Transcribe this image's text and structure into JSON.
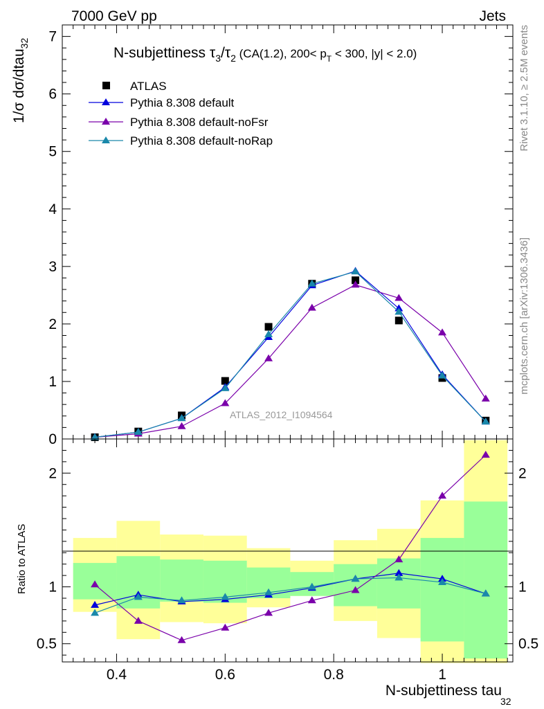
{
  "header": {
    "left": "7000 GeV pp",
    "right": "Jets"
  },
  "side_labels": {
    "rivet": "Rivet 3.1.10, ≥ 2.5M events",
    "mcplots": "mcplots.cern.ch [arXiv:1306.3436]"
  },
  "watermark": "ATLAS_2012_I1094564",
  "chart_data": [
    {
      "type": "scatter",
      "panel": "main",
      "title": {
        "prefix": "N-subjettiness ",
        "tau": "τ",
        "sub3": "3",
        "slash": "/",
        "sub2": "2",
        "cut_a": " (CA(1.2), 200< p",
        "cut_sub": "T",
        "cut_b": " < 300, |y| < 2.0)"
      },
      "ylabel": {
        "main": "1/σ dσ/dtau",
        "sub": "32"
      },
      "xlim": [
        0.3,
        1.13
      ],
      "ylim": [
        0,
        7.2
      ],
      "yticks": [
        0,
        1,
        2,
        3,
        4,
        5,
        6,
        7
      ],
      "legend_position": "top-left",
      "x": [
        0.36,
        0.44,
        0.52,
        0.6,
        0.68,
        0.76,
        0.84,
        0.92,
        1.0,
        1.08
      ],
      "series": [
        {
          "name": "ATLAS",
          "marker": "square",
          "color": "#000000",
          "values": [
            0.03,
            0.13,
            0.41,
            1.01,
            1.95,
            2.7,
            2.76,
            2.06,
            1.06,
            0.32
          ]
        },
        {
          "name": "Pythia 8.308 default",
          "marker": "triangle",
          "color": "#0000dd",
          "values": [
            0.03,
            0.12,
            0.36,
            0.9,
            1.77,
            2.67,
            2.92,
            2.27,
            1.12,
            0.3
          ]
        },
        {
          "name": "Pythia 8.308 default-noFsr",
          "marker": "triangle",
          "color": "#7a00aa",
          "values": [
            0.03,
            0.09,
            0.22,
            0.62,
            1.4,
            2.28,
            2.68,
            2.45,
            1.85,
            0.7
          ]
        },
        {
          "name": "Pythia 8.308 default-noRap",
          "marker": "triangle",
          "color": "#1a88aa",
          "values": [
            0.03,
            0.12,
            0.36,
            0.88,
            1.82,
            2.7,
            2.91,
            2.21,
            1.1,
            0.3
          ]
        }
      ]
    },
    {
      "type": "line",
      "panel": "ratio",
      "ylabel": "Ratio to ATLAS",
      "xlabel": {
        "main": "N-subjettiness tau",
        "sub": "32"
      },
      "xlim": [
        0.3,
        1.13
      ],
      "ylim": [
        0.34,
        2.3
      ],
      "yticks": [
        0.5,
        1,
        2
      ],
      "xticks": [
        0.4,
        0.6,
        0.8,
        1.0
      ],
      "bins": [
        [
          0.32,
          0.4
        ],
        [
          0.4,
          0.48
        ],
        [
          0.48,
          0.56
        ],
        [
          0.56,
          0.64
        ],
        [
          0.64,
          0.72
        ],
        [
          0.72,
          0.8
        ],
        [
          0.8,
          0.88
        ],
        [
          0.88,
          0.96
        ],
        [
          0.96,
          1.04
        ],
        [
          1.04,
          1.12
        ]
      ],
      "band_stat_color": "#99ff99",
      "band_total_color": "#ffff99",
      "band_stat": [
        [
          0.89,
          1.21
        ],
        [
          0.81,
          1.27
        ],
        [
          0.87,
          1.24
        ],
        [
          0.86,
          1.23
        ],
        [
          0.9,
          1.17
        ],
        [
          0.92,
          1.13
        ],
        [
          0.83,
          1.2
        ],
        [
          0.81,
          1.25
        ],
        [
          0.52,
          1.43
        ],
        [
          0.37,
          1.75
        ]
      ],
      "band_total": [
        [
          0.78,
          1.43
        ],
        [
          0.54,
          1.58
        ],
        [
          0.69,
          1.46
        ],
        [
          0.68,
          1.45
        ],
        [
          0.82,
          1.34
        ],
        [
          0.92,
          1.23
        ],
        [
          0.7,
          1.41
        ],
        [
          0.55,
          1.51
        ],
        [
          0.33,
          1.76
        ],
        [
          0.33,
          2.29
        ]
      ],
      "x": [
        0.36,
        0.44,
        0.52,
        0.6,
        0.68,
        0.76,
        0.84,
        0.92,
        1.0,
        1.08
      ],
      "series": [
        {
          "name": "Pythia 8.308 default",
          "color": "#0000dd",
          "values": [
            0.84,
            0.93,
            0.87,
            0.89,
            0.93,
            0.99,
            1.07,
            1.12,
            1.07,
            0.94
          ]
        },
        {
          "name": "Pythia 8.308 default-noFsr",
          "color": "#7a00aa",
          "values": [
            1.02,
            0.7,
            0.53,
            0.64,
            0.77,
            0.88,
            0.97,
            1.24,
            1.8,
            2.16
          ]
        },
        {
          "name": "Pythia 8.308 default-noRap",
          "color": "#1a88aa",
          "values": [
            0.77,
            0.91,
            0.88,
            0.91,
            0.95,
            1.0,
            1.07,
            1.08,
            1.04,
            0.94
          ]
        }
      ]
    }
  ]
}
